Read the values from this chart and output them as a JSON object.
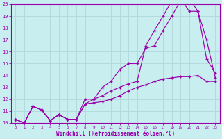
{
  "xlabel": "Windchill (Refroidissement éolien,°C)",
  "bg_color": "#c8eef0",
  "grid_color": "#b0d8da",
  "line_color": "#9900aa",
  "xlim": [
    -0.5,
    23.5
  ],
  "ylim": [
    10,
    20
  ],
  "xticks": [
    0,
    1,
    2,
    3,
    4,
    5,
    6,
    7,
    8,
    9,
    10,
    11,
    12,
    13,
    14,
    15,
    16,
    17,
    18,
    19,
    20,
    21,
    22,
    23
  ],
  "yticks": [
    10,
    11,
    12,
    13,
    14,
    15,
    16,
    17,
    18,
    19,
    20
  ],
  "line1_x": [
    0,
    1,
    2,
    3,
    4,
    5,
    6,
    7,
    8,
    9,
    10,
    11,
    12,
    13,
    14,
    15,
    16,
    17,
    18,
    19,
    20,
    21,
    22,
    23
  ],
  "line1_y": [
    10.3,
    10.0,
    11.4,
    11.1,
    10.2,
    10.7,
    10.3,
    10.3,
    12.0,
    12.0,
    13.0,
    13.5,
    14.5,
    15.0,
    15.0,
    16.3,
    16.5,
    17.8,
    19.0,
    20.3,
    20.5,
    19.4,
    15.4,
    14.2
  ],
  "line2_x": [
    0,
    1,
    2,
    3,
    4,
    5,
    6,
    7,
    8,
    9,
    10,
    11,
    12,
    13,
    14,
    15,
    16,
    17,
    18,
    19,
    20,
    21,
    22,
    23
  ],
  "line2_y": [
    10.3,
    10.0,
    11.4,
    11.1,
    10.2,
    10.7,
    10.3,
    10.3,
    11.6,
    12.0,
    12.3,
    12.7,
    13.0,
    13.3,
    13.5,
    16.5,
    17.8,
    19.0,
    20.3,
    20.5,
    19.4,
    19.4,
    17.0,
    13.8
  ],
  "line3_x": [
    0,
    1,
    2,
    3,
    4,
    5,
    6,
    7,
    8,
    9,
    10,
    11,
    12,
    13,
    14,
    15,
    16,
    17,
    18,
    19,
    20,
    21,
    22,
    23
  ],
  "line3_y": [
    10.3,
    10.0,
    11.4,
    11.1,
    10.2,
    10.7,
    10.3,
    10.3,
    11.6,
    11.7,
    11.8,
    12.0,
    12.3,
    12.7,
    13.0,
    13.2,
    13.5,
    13.7,
    13.8,
    13.9,
    13.9,
    14.0,
    13.5,
    13.5
  ]
}
